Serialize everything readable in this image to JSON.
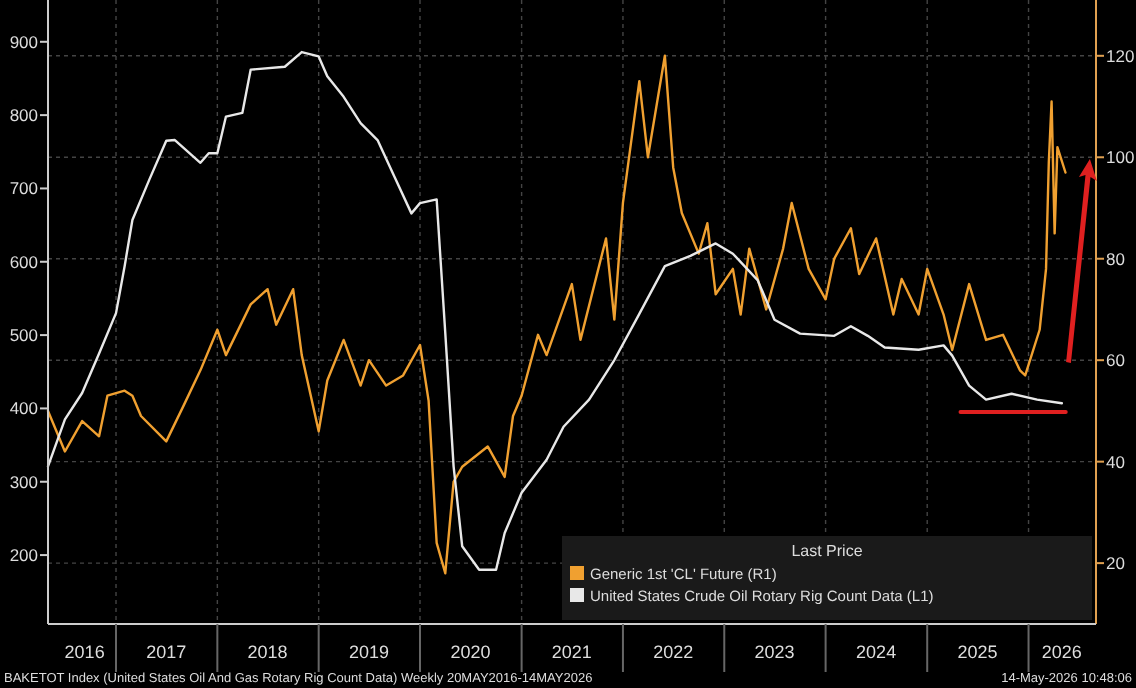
{
  "chart_data": {
    "type": "line",
    "legend_title": "Last Price",
    "legend": "bottom right",
    "grid": true,
    "xlim": [
      "2016-05-01",
      "2026-09-01"
    ],
    "xticks": [
      {
        "value": "2016-09-10",
        "label": "2016"
      },
      {
        "value": "2017-01-01",
        "label": null
      },
      {
        "value": "2017-07-01",
        "label": "2017"
      },
      {
        "value": "2018-01-01",
        "label": null
      },
      {
        "value": "2018-07-01",
        "label": "2018"
      },
      {
        "value": "2019-01-01",
        "label": null
      },
      {
        "value": "2019-07-01",
        "label": "2019"
      },
      {
        "value": "2020-01-01",
        "label": null
      },
      {
        "value": "2020-07-01",
        "label": "2020"
      },
      {
        "value": "2021-01-01",
        "label": null
      },
      {
        "value": "2021-07-01",
        "label": "2021"
      },
      {
        "value": "2022-01-01",
        "label": null
      },
      {
        "value": "2022-07-01",
        "label": "2022"
      },
      {
        "value": "2023-01-01",
        "label": null
      },
      {
        "value": "2023-07-01",
        "label": "2023"
      },
      {
        "value": "2024-01-01",
        "label": null
      },
      {
        "value": "2024-07-01",
        "label": "2024"
      },
      {
        "value": "2025-01-01",
        "label": null
      },
      {
        "value": "2025-07-01",
        "label": "2025"
      },
      {
        "value": "2026-01-01",
        "label": null
      },
      {
        "value": "2026-05-01",
        "label": "2026"
      }
    ],
    "ylim": [
      106,
      957
    ],
    "yticks": [
      200,
      300,
      400,
      500,
      600,
      700,
      800,
      900
    ],
    "y2lim": [
      8,
      131
    ],
    "y2ticks": [
      20,
      40,
      60,
      80,
      100,
      120
    ],
    "series": [
      {
        "name": "Generic 1st 'CL' Future (R1)",
        "color": "#f0a030",
        "axis": "y2",
        "x": [
          "2016-05",
          "2016-07",
          "2016-09",
          "2016-11",
          "2016-12",
          "2017-02",
          "2017-03",
          "2017-04",
          "2017-07",
          "2017-09",
          "2017-11",
          "2018-01",
          "2018-02",
          "2018-05",
          "2018-07",
          "2018-08",
          "2018-10",
          "2018-11",
          "2019-01",
          "2019-02",
          "2019-04",
          "2019-06",
          "2019-07",
          "2019-09",
          "2019-11",
          "2020-01",
          "2020-02",
          "2020-03",
          "2020-04",
          "2020-05",
          "2020-06",
          "2020-09",
          "2020-11",
          "2020-12",
          "2021-01",
          "2021-03",
          "2021-04",
          "2021-07",
          "2021-08",
          "2021-11",
          "2021-12",
          "2022-01",
          "2022-03",
          "2022-04",
          "2022-06",
          "2022-07",
          "2022-08",
          "2022-10",
          "2022-11",
          "2022-12",
          "2023-02",
          "2023-03",
          "2023-04",
          "2023-06",
          "2023-08",
          "2023-09",
          "2023-11",
          "2024-01",
          "2024-02",
          "2024-04",
          "2024-05",
          "2024-07",
          "2024-09",
          "2024-10",
          "2024-12",
          "2025-01",
          "2025-03",
          "2025-04",
          "2025-06",
          "2025-08",
          "2025-10",
          "2025-12-01",
          "2025-12-20",
          "2026-02-10",
          "2026-03-05",
          "2026-03-15",
          "2026-03-25",
          "2026-04-05",
          "2026-04-15",
          "2026-05-14"
        ],
        "values": [
          50,
          42,
          48,
          45,
          53,
          54,
          53,
          49,
          44,
          51,
          58,
          66,
          61,
          71,
          74,
          67,
          74,
          61,
          46,
          56,
          64,
          55,
          60,
          55,
          57,
          63,
          52,
          24,
          18,
          36,
          39,
          43,
          37,
          49,
          53,
          65,
          61,
          75,
          64,
          84,
          68,
          91,
          115,
          100,
          120,
          98,
          89,
          81,
          87,
          73,
          78,
          69,
          82,
          70,
          82,
          91,
          78,
          72,
          80,
          86,
          77,
          84,
          69,
          76,
          69,
          78,
          69,
          62,
          75,
          64,
          65,
          58,
          57,
          66,
          78,
          99,
          111,
          85,
          102,
          97
        ]
      },
      {
        "name": "United States Crude Oil Rotary Rig Count Data (L1)",
        "color": "#e8e8e8",
        "axis": "y",
        "x": [
          "2016-05",
          "2016-07",
          "2016-09",
          "2016-11",
          "2017-01",
          "2017-02",
          "2017-03",
          "2017-05",
          "2017-07",
          "2017-08",
          "2017-11",
          "2017-12",
          "2018-01",
          "2018-02",
          "2018-04",
          "2018-05",
          "2018-09",
          "2018-11",
          "2019-01",
          "2019-02",
          "2019-04",
          "2019-06",
          "2019-08",
          "2019-10",
          "2019-12",
          "2020-01",
          "2020-03",
          "2020-04",
          "2020-05",
          "2020-06",
          "2020-08",
          "2020-10",
          "2020-11",
          "2021-01",
          "2021-04",
          "2021-06",
          "2021-09",
          "2021-12",
          "2022-03",
          "2022-06",
          "2022-09",
          "2022-12",
          "2023-02",
          "2023-05",
          "2023-07",
          "2023-10",
          "2024-02",
          "2024-04",
          "2024-06",
          "2024-08",
          "2024-12",
          "2025-03",
          "2025-04",
          "2025-06",
          "2025-08",
          "2025-11",
          "2026-02",
          "2026-05"
        ],
        "values": [
          321,
          385,
          421,
          475,
          530,
          594,
          657,
          712,
          765,
          766,
          735,
          748,
          748,
          798,
          803,
          862,
          866,
          886,
          880,
          853,
          825,
          789,
          766,
          716,
          666,
          680,
          685,
          503,
          321,
          212,
          180,
          180,
          230,
          285,
          330,
          375,
          412,
          466,
          529,
          594,
          608,
          625,
          611,
          575,
          521,
          502,
          499,
          512,
          499,
          483,
          480,
          486,
          472,
          431,
          412,
          420,
          412,
          407
        ]
      },
      {
        "color": "#e02020",
        "axis": "y",
        "x": [
          "2025-05-01",
          "2026-05-15"
        ],
        "values": [
          395,
          395
        ]
      }
    ],
    "annotations": [
      "BAKETOT Index (United States Oil And Gas Rotary Rig Count Data) Weekly 20MAY2016-14MAY2026",
      "14-May-2026 10:48:06"
    ]
  }
}
